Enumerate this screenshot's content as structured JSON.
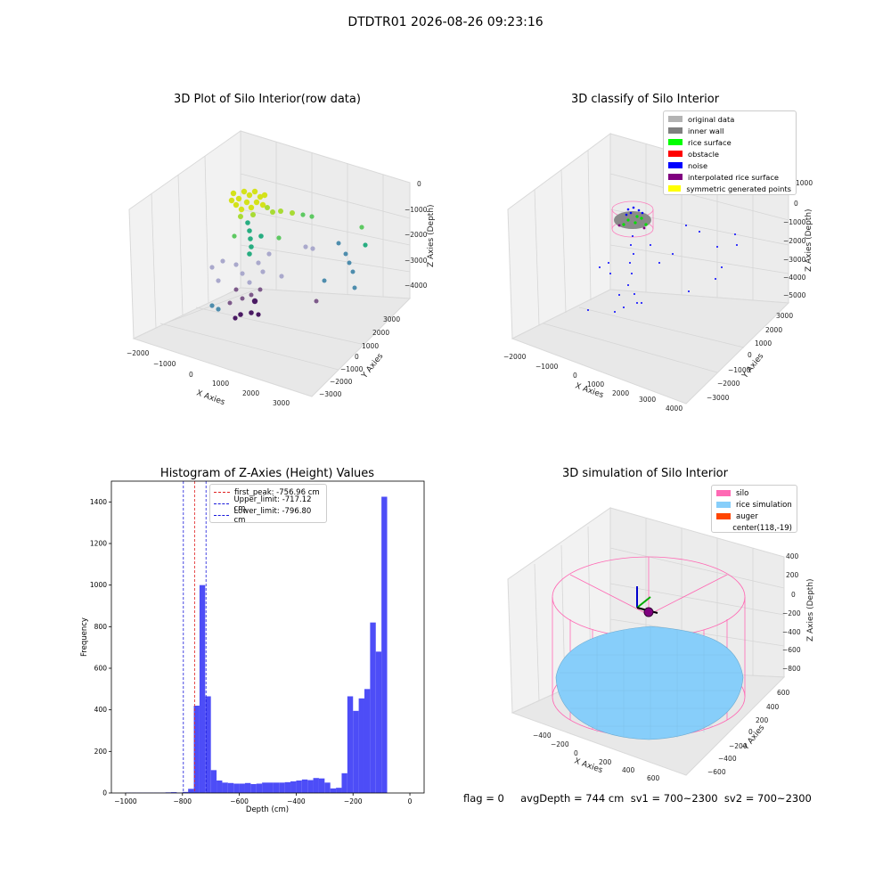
{
  "supertitle": "DTDTR01 2026-08-26 09:23:16",
  "footer": "flag = 0     avgDepth = 744 cm  sv1 = 700~2300  sv2 = 700~2300",
  "colors": {
    "hist_bar": "#4d4df7",
    "peak_line": "#e02020",
    "limit_line": "#1a1adb",
    "pane": "#f2f2f2",
    "grid": "#d0d0d0",
    "silo": "#ff69b4",
    "rice": "#87cefa",
    "auger": "#ff4500"
  },
  "panels": {
    "raw": {
      "title": "3D Plot of Silo Interior(row data)",
      "x_label": "X Axies",
      "y_label": "Y Axies",
      "z_label": "Z Axies (Depth)",
      "x_ticks": [
        "−2000",
        "−1000",
        "0",
        "1000",
        "2000",
        "3000"
      ],
      "y_ticks": [
        "3000",
        "2000",
        "1000",
        "0",
        "−1000",
        "−2000",
        "−3000"
      ],
      "z_ticks": [
        "0",
        "−1000",
        "−2000",
        "−3000",
        "−4000"
      ]
    },
    "classify": {
      "title": "3D classify of Silo Interior",
      "x_label": "X Axies",
      "y_label": "Y Axies",
      "z_label": "Z Axies (Depth)",
      "x_ticks": [
        "−2000",
        "−1000",
        "0",
        "1000",
        "2000",
        "3000",
        "4000"
      ],
      "y_ticks": [
        "3000",
        "2000",
        "1000",
        "0",
        "−1000",
        "−2000",
        "−3000"
      ],
      "z_ticks": [
        "1000",
        "0",
        "−1000",
        "−2000",
        "−3000",
        "−4000",
        "−5000"
      ],
      "legend": [
        {
          "label": "original data",
          "color": "#b3b3b3"
        },
        {
          "label": "inner wall",
          "color": "#808080"
        },
        {
          "label": "rice surface",
          "color": "#00ff00"
        },
        {
          "label": "obstacle",
          "color": "#ff0000"
        },
        {
          "label": "noise",
          "color": "#0000ff"
        },
        {
          "label": "interpolated rice surface",
          "color": "#800080"
        },
        {
          "label": "symmetric generated points",
          "color": "#ffff00"
        }
      ]
    },
    "simulation": {
      "title": "3D simulation of Silo Interior",
      "x_label": "X Axies",
      "y_label": "Y Axies",
      "z_label": "Z Axies (Depth)",
      "x_ticks": [
        "−400",
        "−200",
        "0",
        "200",
        "400",
        "600"
      ],
      "y_ticks": [
        "600",
        "400",
        "200",
        "0",
        "−200",
        "−400",
        "−600"
      ],
      "z_ticks": [
        "400",
        "200",
        "0",
        "−200",
        "−400",
        "−600",
        "−800"
      ],
      "legend": [
        {
          "label": "silo",
          "color": "#ff69b4"
        },
        {
          "label": "rice simulation",
          "color": "#87cefa"
        },
        {
          "label": "auger",
          "color": "#ff4500"
        },
        {
          "label": "center(118,-19)",
          "color": ""
        }
      ]
    }
  },
  "chart_data": {
    "type": "bar",
    "title": "Histogram of Z-Axies (Height) Values",
    "xlabel": "Depth (cm)",
    "ylabel": "Frequency",
    "xlim": [
      -1050,
      50
    ],
    "ylim": [
      0,
      1500
    ],
    "x_ticks": [
      -1000,
      -800,
      -600,
      -400,
      -200,
      0
    ],
    "x_tick_labels": [
      "−1000",
      "−800",
      "−600",
      "−400",
      "−200",
      "0"
    ],
    "y_ticks": [
      0,
      200,
      400,
      600,
      800,
      1000,
      1200,
      1400
    ],
    "bin_width": 20,
    "bin_edges_start": -1000,
    "values": [
      2,
      2,
      2,
      2,
      2,
      2,
      2,
      3,
      4,
      2,
      5,
      20,
      420,
      1000,
      465,
      110,
      60,
      50,
      48,
      45,
      45,
      48,
      43,
      45,
      50,
      50,
      50,
      50,
      52,
      56,
      60,
      65,
      62,
      72,
      70,
      50,
      22,
      25,
      95,
      465,
      395,
      455,
      500,
      820,
      680,
      1425
    ],
    "legend": [
      {
        "label": "first_peak: -756.96 cm",
        "value": -756.96,
        "color": "#e02020"
      },
      {
        "label": "Upper_limit: -717.12 cm",
        "value": -717.12,
        "color": "#1a1adb"
      },
      {
        "label": "Lower_limit: -796.80 cm",
        "value": -796.8,
        "color": "#1a1adb"
      }
    ]
  }
}
